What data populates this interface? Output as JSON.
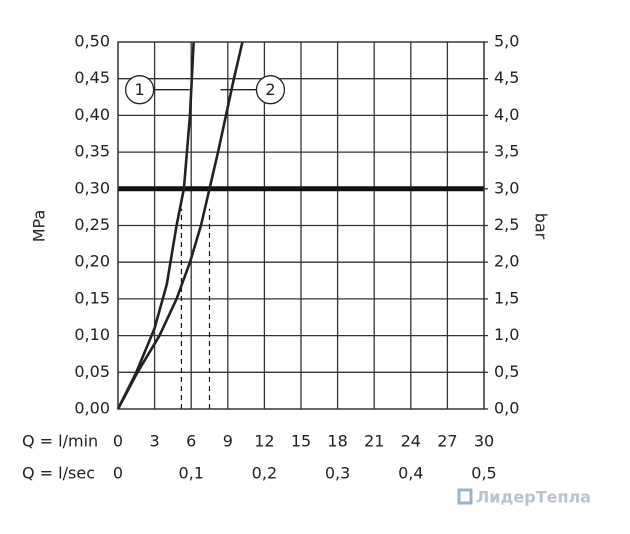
{
  "chart_data": {
    "type": "line",
    "y_label": "MPa",
    "y2_label": "bar",
    "x_row_label": "Q = l/min",
    "x2_row_label": "Q = l/sec",
    "watermark": "ЛидерТепла",
    "xlim": [
      0,
      30
    ],
    "xticks": [
      0,
      3,
      6,
      9,
      12,
      15,
      18,
      21,
      24,
      27,
      30
    ],
    "x2lim": [
      0,
      0.5
    ],
    "x2ticks": [
      {
        "value": 0,
        "label": "0"
      },
      {
        "value": 0.1,
        "label": "0,1"
      },
      {
        "value": 0.2,
        "label": "0,2"
      },
      {
        "value": 0.3,
        "label": "0,3"
      },
      {
        "value": 0.4,
        "label": "0,4"
      },
      {
        "value": 0.5,
        "label": "0,5"
      }
    ],
    "ylim": [
      0,
      0.5
    ],
    "yticks": [
      {
        "value": 0,
        "label": "0,00"
      },
      {
        "value": 0.05,
        "label": "0,05"
      },
      {
        "value": 0.1,
        "label": "0,10"
      },
      {
        "value": 0.15,
        "label": "0,15"
      },
      {
        "value": 0.2,
        "label": "0,20"
      },
      {
        "value": 0.25,
        "label": "0,25"
      },
      {
        "value": 0.3,
        "label": "0,30"
      },
      {
        "value": 0.35,
        "label": "0,35"
      },
      {
        "value": 0.4,
        "label": "0,40"
      },
      {
        "value": 0.45,
        "label": "0,45"
      },
      {
        "value": 0.5,
        "label": "0,50"
      }
    ],
    "y2lim": [
      0,
      5
    ],
    "y2ticks": [
      {
        "value": 0,
        "label": "0,0"
      },
      {
        "value": 0.5,
        "label": "0,5"
      },
      {
        "value": 1,
        "label": "1,0"
      },
      {
        "value": 1.5,
        "label": "1,5"
      },
      {
        "value": 2,
        "label": "2,0"
      },
      {
        "value": 2.5,
        "label": "2,5"
      },
      {
        "value": 3,
        "label": "3,0"
      },
      {
        "value": 3.5,
        "label": "3,5"
      },
      {
        "value": 4,
        "label": "4,0"
      },
      {
        "value": 4.5,
        "label": "4,5"
      },
      {
        "value": 5,
        "label": "5,0"
      }
    ],
    "grid": true,
    "reference_y": 0.3,
    "reference_x": [
      5.2,
      7.5
    ],
    "series": [
      {
        "name": "1",
        "color": "#222222",
        "x": [
          0,
          1.5,
          3,
          4,
          4.8,
          5.4,
          5.9,
          6.2
        ],
        "values": [
          0,
          0.05,
          0.11,
          0.17,
          0.25,
          0.3,
          0.4,
          0.5
        ]
      },
      {
        "name": "2",
        "color": "#222222",
        "x": [
          0,
          1.6,
          3.4,
          4.8,
          5.9,
          6.8,
          7.5,
          8.2,
          8.85,
          9.5,
          10.2
        ],
        "values": [
          0,
          0.05,
          0.1,
          0.15,
          0.2,
          0.25,
          0.3,
          0.35,
          0.4,
          0.45,
          0.5
        ]
      }
    ]
  }
}
